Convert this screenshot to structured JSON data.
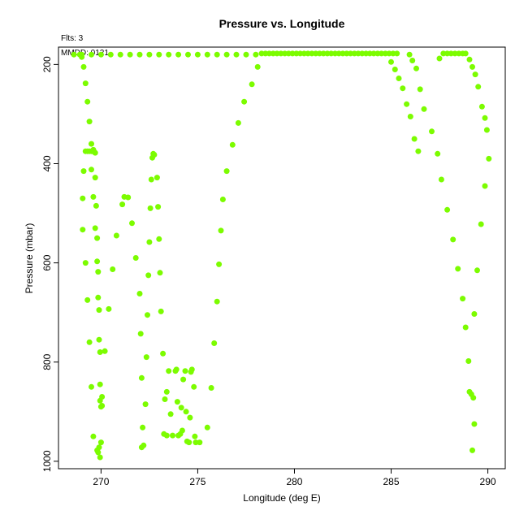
{
  "chart_data": {
    "type": "scatter",
    "title": "Pressure vs. Longitude",
    "xlabel": "Longitude (deg E)",
    "ylabel": "Pressure (mbar)",
    "annotations": {
      "flts": "Flts: 3",
      "mmdd": "MMDD: 0121"
    },
    "xlim": [
      267.8,
      290.9
    ],
    "ylim": [
      1015,
      165
    ],
    "y_axis_inverted": true,
    "x_ticks": [
      270,
      275,
      280,
      285,
      290
    ],
    "y_ticks": [
      200,
      400,
      600,
      800,
      1000
    ],
    "grid": false,
    "legend": "none",
    "marker_color": "#7cfc00",
    "points": [
      [
        268.6,
        180
      ],
      [
        268.9,
        180
      ],
      [
        269.0,
        185
      ],
      [
        269.1,
        205
      ],
      [
        269.2,
        238
      ],
      [
        269.3,
        275
      ],
      [
        269.4,
        315
      ],
      [
        269.5,
        360
      ],
      [
        269.6,
        372
      ],
      [
        269.7,
        378
      ],
      [
        269.2,
        375
      ],
      [
        269.3,
        375
      ],
      [
        269.4,
        375
      ],
      [
        269.5,
        375
      ],
      [
        269.55,
        375
      ],
      [
        269.65,
        376
      ],
      [
        269.1,
        415
      ],
      [
        269.5,
        412
      ],
      [
        269.7,
        428
      ],
      [
        269.05,
        470
      ],
      [
        269.6,
        467
      ],
      [
        269.75,
        485
      ],
      [
        269.05,
        533
      ],
      [
        269.7,
        530
      ],
      [
        269.8,
        550
      ],
      [
        269.2,
        600
      ],
      [
        269.8,
        597
      ],
      [
        269.85,
        618
      ],
      [
        269.3,
        675
      ],
      [
        269.85,
        670
      ],
      [
        269.9,
        695
      ],
      [
        269.4,
        760
      ],
      [
        269.9,
        755
      ],
      [
        269.95,
        780
      ],
      [
        270.2,
        778
      ],
      [
        269.5,
        850
      ],
      [
        269.95,
        845
      ],
      [
        270.05,
        870
      ],
      [
        269.95,
        878
      ],
      [
        270.0,
        890
      ],
      [
        270.05,
        888
      ],
      [
        269.6,
        950
      ],
      [
        269.8,
        978
      ],
      [
        270.0,
        962
      ],
      [
        269.9,
        972
      ],
      [
        269.85,
        982
      ],
      [
        269.95,
        992
      ],
      [
        270.4,
        693
      ],
      [
        270.6,
        613
      ],
      [
        270.8,
        545
      ],
      [
        271.1,
        482
      ],
      [
        271.2,
        467
      ],
      [
        271.4,
        468
      ],
      [
        271.6,
        520
      ],
      [
        271.8,
        590
      ],
      [
        272.0,
        662
      ],
      [
        272.05,
        743
      ],
      [
        272.1,
        832
      ],
      [
        272.15,
        932
      ],
      [
        272.2,
        968
      ],
      [
        272.1,
        972
      ],
      [
        272.3,
        885
      ],
      [
        272.35,
        790
      ],
      [
        272.4,
        705
      ],
      [
        272.45,
        625
      ],
      [
        272.5,
        558
      ],
      [
        272.55,
        490
      ],
      [
        272.6,
        432
      ],
      [
        272.7,
        380
      ],
      [
        272.65,
        388
      ],
      [
        272.75,
        382
      ],
      [
        272.9,
        428
      ],
      [
        272.95,
        487
      ],
      [
        273.0,
        552
      ],
      [
        273.05,
        620
      ],
      [
        273.1,
        698
      ],
      [
        273.2,
        783
      ],
      [
        273.3,
        875
      ],
      [
        273.4,
        860
      ],
      [
        273.5,
        818
      ],
      [
        273.25,
        945
      ],
      [
        273.4,
        948
      ],
      [
        273.6,
        905
      ],
      [
        273.7,
        948
      ],
      [
        273.85,
        818
      ],
      [
        273.9,
        815
      ],
      [
        273.95,
        880
      ],
      [
        274.0,
        948
      ],
      [
        274.1,
        945
      ],
      [
        274.15,
        892
      ],
      [
        274.2,
        938
      ],
      [
        274.25,
        835
      ],
      [
        274.35,
        818
      ],
      [
        274.4,
        900
      ],
      [
        274.45,
        960
      ],
      [
        274.55,
        962
      ],
      [
        274.6,
        912
      ],
      [
        274.65,
        820
      ],
      [
        274.7,
        815
      ],
      [
        274.8,
        850
      ],
      [
        274.85,
        950
      ],
      [
        274.9,
        962
      ],
      [
        275.1,
        962
      ],
      [
        275.5,
        932
      ],
      [
        275.7,
        852
      ],
      [
        275.85,
        762
      ],
      [
        276.0,
        678
      ],
      [
        276.1,
        603
      ],
      [
        276.2,
        535
      ],
      [
        276.3,
        472
      ],
      [
        276.5,
        415
      ],
      [
        276.8,
        362
      ],
      [
        277.1,
        318
      ],
      [
        277.4,
        275
      ],
      [
        277.8,
        240
      ],
      [
        278.1,
        205
      ],
      [
        278.3,
        178
      ],
      [
        269.0,
        180
      ],
      [
        269.5,
        180
      ],
      [
        270.0,
        180
      ],
      [
        270.5,
        180
      ],
      [
        271.0,
        180
      ],
      [
        271.5,
        180
      ],
      [
        272.0,
        180
      ],
      [
        272.5,
        180
      ],
      [
        273.0,
        180
      ],
      [
        273.5,
        180
      ],
      [
        274.0,
        180
      ],
      [
        274.5,
        180
      ],
      [
        275.0,
        180
      ],
      [
        275.5,
        180
      ],
      [
        276.0,
        180
      ],
      [
        276.5,
        180
      ],
      [
        277.0,
        180
      ],
      [
        277.5,
        180
      ],
      [
        278.0,
        180
      ],
      [
        278.5,
        178
      ],
      [
        278.7,
        178
      ],
      [
        278.9,
        178
      ],
      [
        279.1,
        178
      ],
      [
        279.3,
        178
      ],
      [
        279.5,
        178
      ],
      [
        279.7,
        178
      ],
      [
        279.9,
        178
      ],
      [
        280.1,
        178
      ],
      [
        280.3,
        178
      ],
      [
        280.5,
        178
      ],
      [
        280.7,
        178
      ],
      [
        280.9,
        178
      ],
      [
        281.1,
        178
      ],
      [
        281.3,
        178
      ],
      [
        281.5,
        178
      ],
      [
        281.7,
        178
      ],
      [
        281.9,
        178
      ],
      [
        282.1,
        178
      ],
      [
        282.3,
        178
      ],
      [
        282.5,
        178
      ],
      [
        282.7,
        178
      ],
      [
        282.9,
        178
      ],
      [
        283.1,
        178
      ],
      [
        283.3,
        178
      ],
      [
        283.5,
        178
      ],
      [
        283.7,
        178
      ],
      [
        283.9,
        178
      ],
      [
        284.1,
        178
      ],
      [
        284.3,
        178
      ],
      [
        284.5,
        178
      ],
      [
        284.7,
        178
      ],
      [
        284.9,
        178
      ],
      [
        285.1,
        178
      ],
      [
        285.3,
        178
      ],
      [
        285.0,
        195
      ],
      [
        285.2,
        210
      ],
      [
        285.4,
        228
      ],
      [
        285.6,
        248
      ],
      [
        285.8,
        280
      ],
      [
        286.0,
        305
      ],
      [
        286.2,
        350
      ],
      [
        286.4,
        375
      ],
      [
        285.95,
        180
      ],
      [
        286.1,
        192
      ],
      [
        286.3,
        208
      ],
      [
        286.5,
        250
      ],
      [
        286.7,
        290
      ],
      [
        287.1,
        335
      ],
      [
        287.4,
        380
      ],
      [
        287.6,
        432
      ],
      [
        287.9,
        493
      ],
      [
        288.2,
        553
      ],
      [
        288.45,
        612
      ],
      [
        288.7,
        672
      ],
      [
        288.85,
        730
      ],
      [
        289.0,
        798
      ],
      [
        289.05,
        860
      ],
      [
        289.15,
        865
      ],
      [
        289.25,
        872
      ],
      [
        289.3,
        925
      ],
      [
        289.2,
        978
      ],
      [
        289.3,
        703
      ],
      [
        289.45,
        615
      ],
      [
        289.65,
        522
      ],
      [
        289.85,
        445
      ],
      [
        290.05,
        390
      ],
      [
        289.95,
        332
      ],
      [
        289.85,
        308
      ],
      [
        289.7,
        285
      ],
      [
        289.5,
        245
      ],
      [
        289.35,
        220
      ],
      [
        289.2,
        205
      ],
      [
        289.05,
        190
      ],
      [
        288.85,
        178
      ],
      [
        287.5,
        188
      ],
      [
        287.7,
        178
      ],
      [
        287.9,
        178
      ],
      [
        288.1,
        178
      ],
      [
        288.3,
        178
      ],
      [
        288.5,
        178
      ],
      [
        288.7,
        178
      ]
    ]
  }
}
